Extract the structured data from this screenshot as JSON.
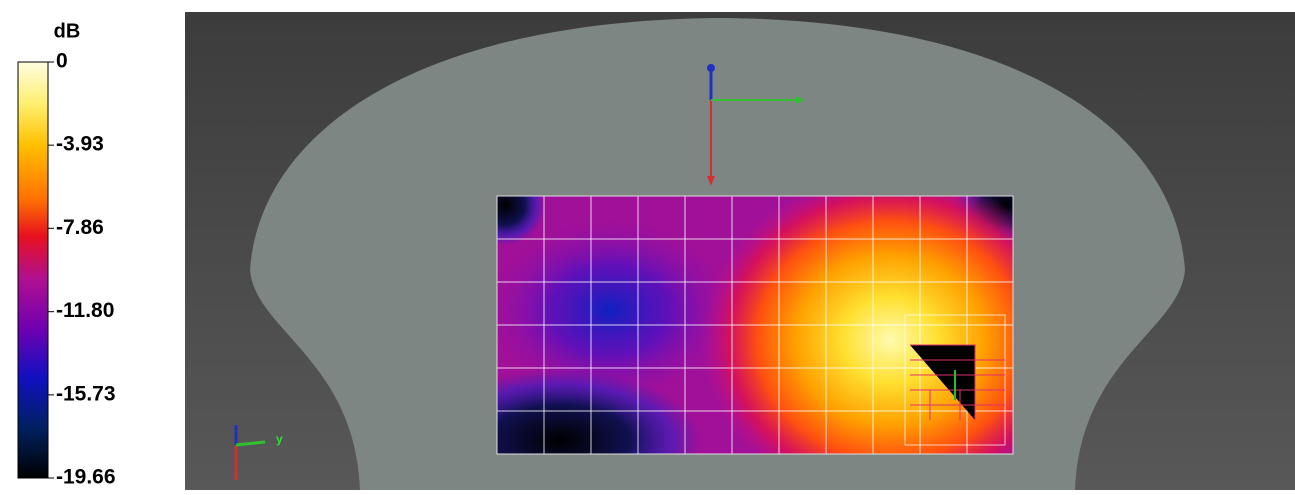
{
  "colorbar": {
    "title": "dB",
    "lim": [
      -19.66,
      0
    ],
    "ticks": [
      0,
      -3.93,
      -7.86,
      {
        "value": -11.8,
        "label": "-11.80"
      },
      -15.73,
      -19.66
    ]
  },
  "triad": {
    "axis_label": "y"
  }
}
